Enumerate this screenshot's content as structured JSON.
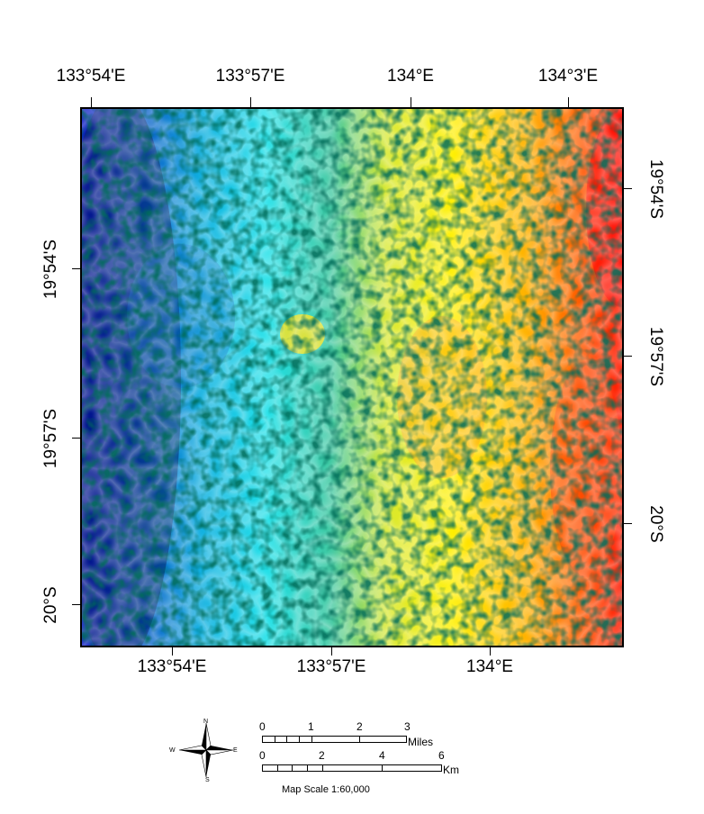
{
  "map": {
    "top_lon_labels": [
      "133°54'E",
      "133°57'E",
      "134°E",
      "134°3'E"
    ],
    "bottom_lon_labels": [
      "133°54'E",
      "133°57'E",
      "134°E"
    ],
    "left_lat_labels": [
      "19°54'S",
      "19°57'S",
      "20°S"
    ],
    "right_lat_labels": [
      "19°54'S",
      "19°57'S",
      "20°S"
    ],
    "color_ramp": [
      "#0000ff",
      "#00a0e0",
      "#20e6ea",
      "#40c090",
      "#fff000",
      "#ffa000",
      "#ff0000"
    ]
  },
  "legend": {
    "compass": {
      "n": "N",
      "e": "E",
      "s": "S",
      "w": "W"
    },
    "miles": {
      "ticks": [
        "0",
        "1",
        "2",
        "3"
      ],
      "unit": "Miles"
    },
    "km": {
      "ticks": [
        "0",
        "2",
        "4",
        "6"
      ],
      "unit": "Km"
    },
    "scale_text": "Map Scale 1:60,000"
  }
}
